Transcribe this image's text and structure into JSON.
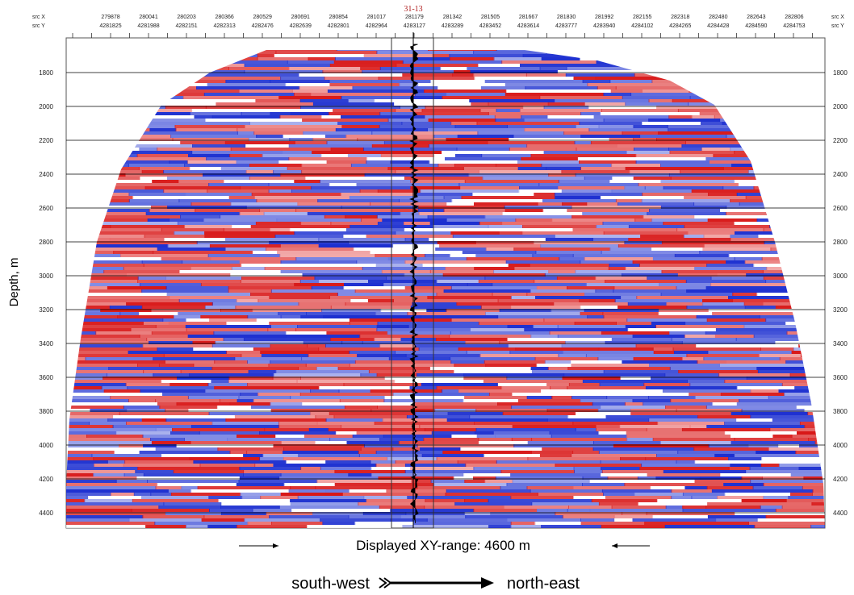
{
  "header": {
    "src_x_label": "src X",
    "src_y_label": "src Y",
    "src_x": [
      279878,
      280041,
      280203,
      280366,
      280529,
      280691,
      280854,
      281017,
      281179,
      281342,
      281505,
      281667,
      281830,
      281992,
      282155,
      282318,
      282480,
      282643,
      282806
    ],
    "src_y": [
      4281825,
      4281988,
      4282151,
      4282313,
      4282476,
      4282639,
      4282801,
      4282964,
      4283127,
      4283289,
      4283452,
      4283614,
      4283777,
      4283940,
      4284102,
      4284265,
      4284428,
      4284590,
      4284753
    ]
  },
  "well": "31-13",
  "depth_axis": {
    "title": "Depth, m",
    "ticks": [
      1800,
      2000,
      2200,
      2400,
      2600,
      2800,
      3000,
      3200,
      3400,
      3600,
      3800,
      4000,
      4200,
      4400
    ]
  },
  "caption": {
    "range": "Displayed XY-range: 4600 m",
    "from": "south-west",
    "to": "north-east"
  }
}
